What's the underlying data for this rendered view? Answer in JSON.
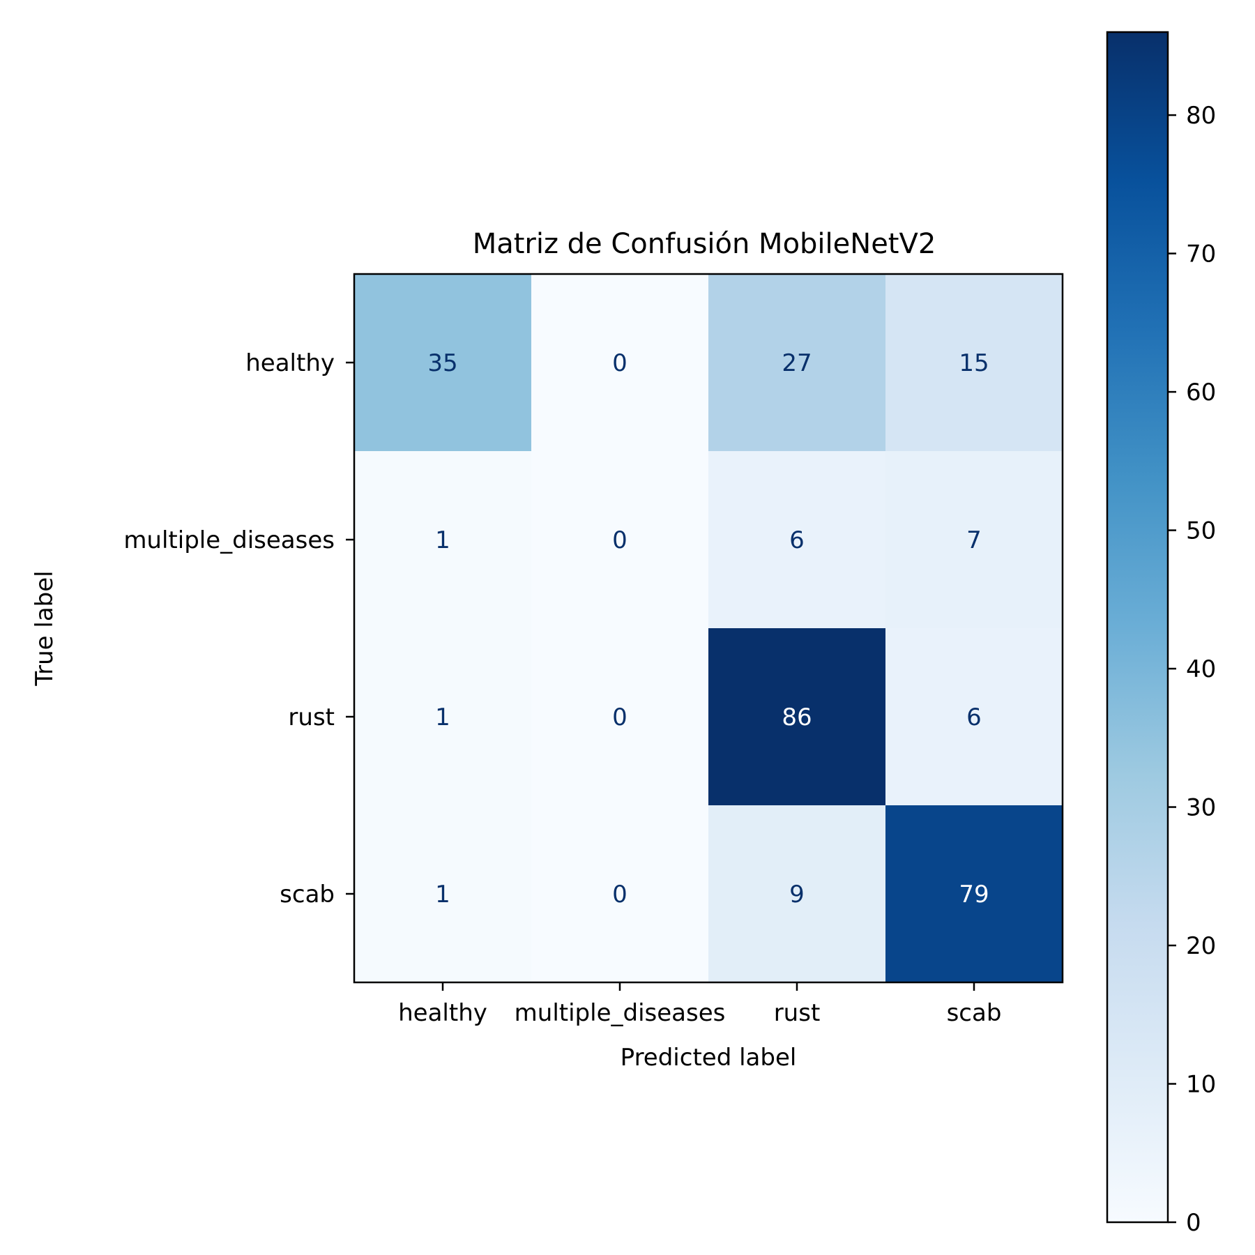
{
  "chart_data": {
    "type": "heatmap",
    "title": "Matriz de Confusión MobileNetV2",
    "xlabel": "Predicted label",
    "ylabel": "True label",
    "x_categories": [
      "healthy",
      "multiple_diseases",
      "rust",
      "scab"
    ],
    "y_categories": [
      "healthy",
      "multiple_diseases",
      "rust",
      "scab"
    ],
    "values": [
      [
        35,
        0,
        27,
        15
      ],
      [
        1,
        0,
        6,
        7
      ],
      [
        1,
        0,
        86,
        6
      ],
      [
        1,
        0,
        9,
        79
      ]
    ],
    "colormap": "Blues",
    "colorbar": {
      "range": [
        0,
        86
      ],
      "ticks": [
        0,
        10,
        20,
        30,
        40,
        50,
        60,
        70,
        80
      ]
    },
    "colors": {
      "text_on_light": "#08306b",
      "text_on_dark": "#ffffff",
      "axis": "#000000"
    }
  }
}
